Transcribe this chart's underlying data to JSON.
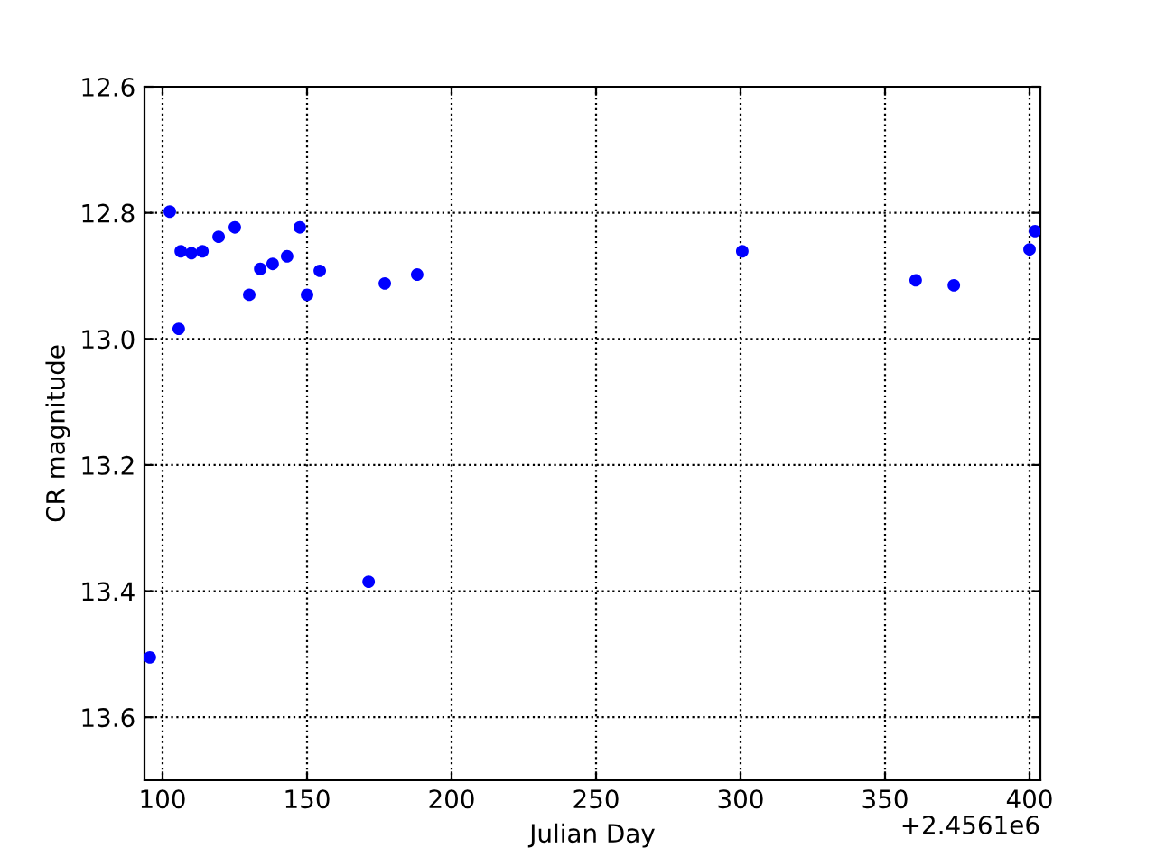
{
  "chart_data": {
    "type": "scatter",
    "xlabel": "Julian Day",
    "ylabel": "CR magnitude",
    "annotations": [
      "+2.4561e6"
    ],
    "series": [
      {
        "color": "#0000ff",
        "x": [
          95.6,
          102.5,
          105.6,
          106.3,
          110,
          113.8,
          119.4,
          125,
          130,
          133.8,
          138.1,
          143.1,
          147.5,
          150,
          154.4,
          171.3,
          176.9,
          188.1,
          300.6,
          360.6,
          373.8,
          400,
          401.9
        ],
        "values": [
          13.505,
          12.798,
          12.984,
          12.861,
          12.864,
          12.861,
          12.838,
          12.823,
          12.93,
          12.889,
          12.881,
          12.869,
          12.823,
          12.93,
          12.892,
          13.385,
          12.912,
          12.898,
          12.861,
          12.907,
          12.915,
          12.858,
          12.829
        ]
      }
    ],
    "xlim": [
      93.75,
      403.75
    ],
    "ylim": [
      13.7,
      12.6
    ],
    "xticks": [
      100,
      150,
      200,
      250,
      300,
      350,
      400
    ],
    "yticks": [
      {
        "value": 12.6,
        "label": "12.6"
      },
      {
        "value": 12.8,
        "label": "12.8"
      },
      {
        "value": 13.0,
        "label": "13.0"
      },
      {
        "value": 13.2,
        "label": "13.2"
      },
      {
        "value": 13.4,
        "label": "13.4"
      },
      {
        "value": 13.6,
        "label": "13.6"
      }
    ],
    "grid": true,
    "marker": "circle"
  }
}
